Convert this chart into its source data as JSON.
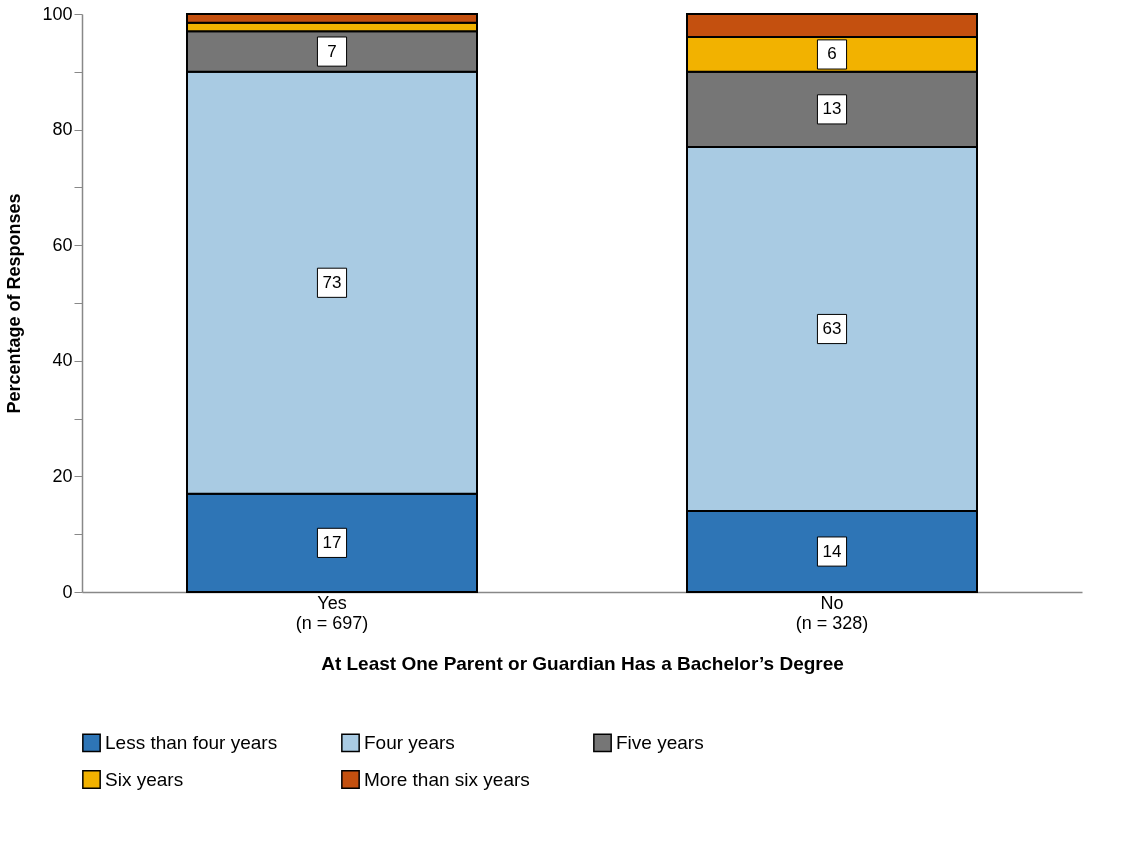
{
  "chart_data": {
    "type": "bar",
    "stacked": true,
    "xlabel": "At Least One Parent or Guardian Has a Bachelor’s Degree",
    "ylabel": "Percentage of Responses",
    "categories": [
      "Yes\n(n = 697)",
      "No\n(n = 328)"
    ],
    "series": [
      {
        "name": "Less than four years",
        "color": "#2e75b6",
        "values": [
          17,
          14
        ],
        "value_labels": [
          "17",
          "14"
        ]
      },
      {
        "name": "Four years",
        "color": "#a9cbe3",
        "values": [
          73,
          63
        ],
        "value_labels": [
          "73",
          "63"
        ]
      },
      {
        "name": "Five years",
        "color": "#767676",
        "values": [
          7,
          13
        ],
        "value_labels": [
          "7",
          "13"
        ]
      },
      {
        "name": "Six years",
        "color": "#f2b200",
        "values": [
          1.5,
          6
        ],
        "value_labels": [
          null,
          "6"
        ]
      },
      {
        "name": "More than six years",
        "color": "#c4500f",
        "values": [
          1.5,
          4
        ],
        "value_labels": [
          null,
          null
        ]
      }
    ],
    "ylim": [
      0,
      100
    ],
    "yticks": [
      0,
      {
        "value": 10,
        "label": null
      },
      20,
      {
        "value": 30,
        "label": null
      },
      40,
      {
        "value": 50,
        "label": null
      },
      60,
      {
        "value": 70,
        "label": null
      },
      80,
      {
        "value": 90,
        "label": null
      },
      100
    ],
    "grid": false,
    "legend": "bottom"
  }
}
